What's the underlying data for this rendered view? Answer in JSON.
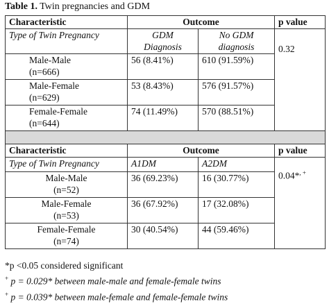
{
  "title": {
    "label": "Table 1.",
    "text": "Twin pregnancies and GDM"
  },
  "sections": [
    {
      "header": [
        "Characteristic",
        "Outcome",
        "p value"
      ],
      "subheader": [
        "Type of Twin Pregnancy",
        "GDM Diagnosis",
        "No GDM diagnosis"
      ],
      "p_value": {
        "text": "0.32"
      },
      "rows": [
        {
          "group": "Male-Male",
          "n": "(n=666)",
          "cells": [
            "56 (8.41%)",
            "610 (91.59%)"
          ]
        },
        {
          "group": "Male-Female",
          "n": "(n=629)",
          "cells": [
            "53 (8.43%)",
            "576 (91.57%)"
          ]
        },
        {
          "group": "Female-Female",
          "n": "(n=644)",
          "cells": [
            "74 (11.49%)",
            "570 (88.51%)"
          ]
        }
      ]
    },
    {
      "header": [
        "Characteristic",
        "Outcome",
        "p value"
      ],
      "subheader": [
        "Type of Twin Pregnancy",
        "A1DM",
        "A2DM"
      ],
      "p_value": {
        "text": "0.04*",
        "sup": ", +"
      },
      "rows": [
        {
          "group": "Male-Male",
          "n": "(n=52)",
          "cells": [
            "36 (69.23%)",
            "16 (30.77%)"
          ]
        },
        {
          "group": "Male-Female",
          "n": "(n=53)",
          "cells": [
            "36 (67.92%)",
            "17 (32.08%)"
          ]
        },
        {
          "group": "Female-Female",
          "n": "(n=74)",
          "cells": [
            "30 (40.54%)",
            "44 (59.46%)"
          ]
        }
      ]
    }
  ],
  "footnotes": [
    {
      "text": "*p <0.05 considered significant"
    },
    {
      "sup": "+",
      "text": "p = 0.029* between male-male and female-female twins"
    },
    {
      "sup": "+",
      "text": "p = 0.039* between male-female and female-female twins"
    }
  ]
}
